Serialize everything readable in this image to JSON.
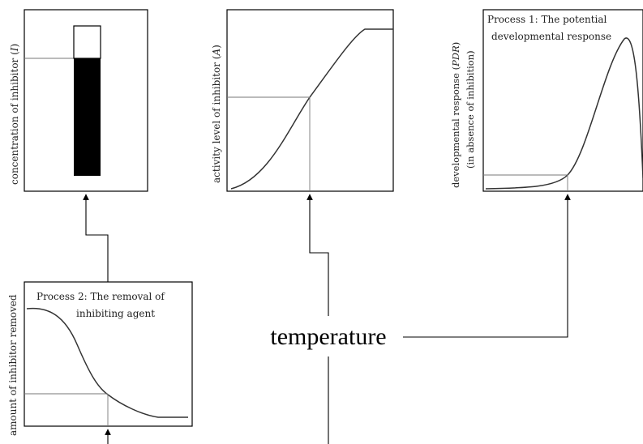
{
  "panels": {
    "concentration": {
      "ylabel_pre": "concentration of inhibitor (",
      "ylabel_var": "I",
      "ylabel_post": ")"
    },
    "activity": {
      "ylabel_pre": "activity level of inhibitor (",
      "ylabel_var": "A",
      "ylabel_post": ")"
    },
    "response": {
      "title_line1": "Process 1: The potential",
      "title_line2": "developmental response",
      "ylabel1_pre": "developmental response (",
      "ylabel1_var": "PDR",
      "ylabel1_post": ")",
      "ylabel2": "(in absence of inhibition)"
    },
    "removal": {
      "title_line1": "Process 2: The removal of",
      "title_line2": "inhibiting agent",
      "ylabel": "amount of inhibitor removed"
    }
  },
  "center_label": "temperature"
}
